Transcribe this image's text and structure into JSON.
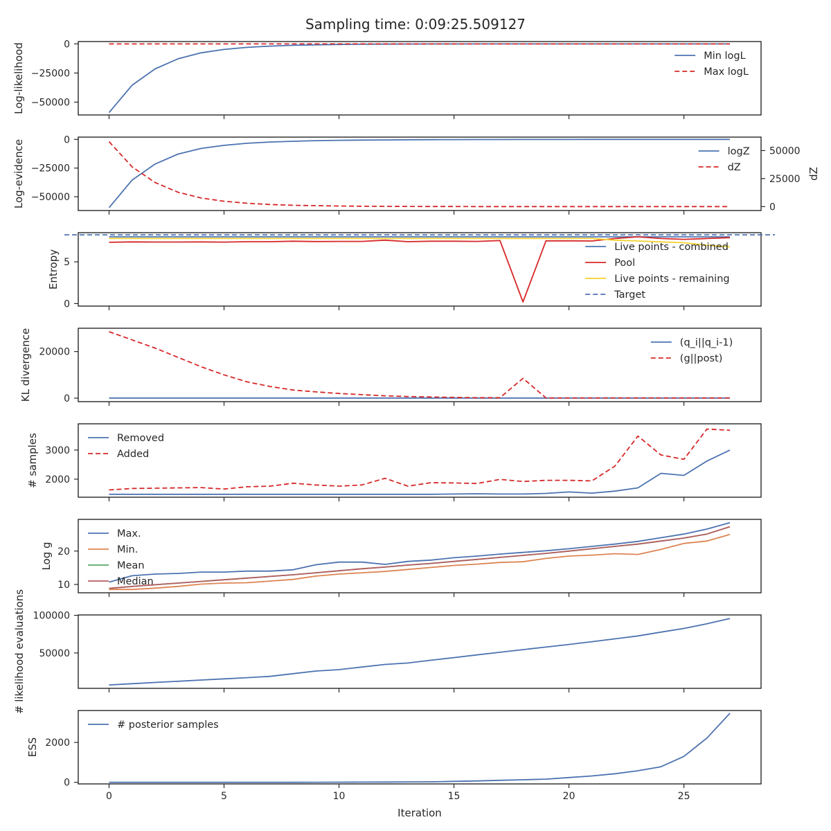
{
  "title": "Sampling time: 0:09:25.509127",
  "xlabel": "Iteration",
  "colors": {
    "blue": "#4c72b0",
    "red": "#d62728",
    "yellow": "#f2d12e",
    "orange": "#dd8452",
    "green": "#55a868",
    "median": "#b55d60",
    "axis": "#262626"
  },
  "chart_data": [
    {
      "type": "line",
      "ylabel": "Log-likelihood",
      "ylim": [
        -61000,
        2000
      ],
      "yticks": [
        0,
        -25000,
        -50000
      ],
      "ytick_labels": [
        "0",
        "−25000",
        "−50000"
      ],
      "legend_position": "right",
      "series": [
        {
          "name": "Min logL",
          "color": "blue",
          "style": "solid",
          "values": [
            -59000,
            -35500,
            -21500,
            -12800,
            -7700,
            -4800,
            -3000,
            -1900,
            -1200,
            -800,
            -500,
            -320,
            -200,
            -130,
            -85,
            -55,
            -35,
            -22,
            -14,
            -9,
            -6,
            -4,
            -2,
            -1,
            -1,
            0,
            0,
            0
          ]
        },
        {
          "name": "Max logL",
          "color": "red",
          "style": "dashed",
          "values": [
            0,
            0,
            0,
            0,
            0,
            0,
            0,
            0,
            0,
            0,
            0,
            0,
            0,
            0,
            0,
            0,
            0,
            0,
            0,
            0,
            0,
            0,
            0,
            0,
            0,
            0,
            0,
            0
          ]
        }
      ]
    },
    {
      "type": "line",
      "ylabel": "Log-evidence",
      "ylabel_right": "dZ",
      "ylim": [
        -62000,
        2000
      ],
      "yticks": [
        0,
        -25000,
        -50000
      ],
      "ytick_labels": [
        "0",
        "−25000",
        "−50000"
      ],
      "ylim_right": [
        -3500,
        62000
      ],
      "yticks_right": [
        0,
        25000,
        50000
      ],
      "ytick_labels_right": [
        "0",
        "25000",
        "50000"
      ],
      "legend_position": "right",
      "series": [
        {
          "name": "logZ",
          "color": "blue",
          "style": "solid",
          "axis": "left",
          "values": [
            -59500,
            -35500,
            -21500,
            -12800,
            -7900,
            -5200,
            -3400,
            -2300,
            -1600,
            -1100,
            -800,
            -600,
            -450,
            -320,
            -230,
            -170,
            -120,
            -90,
            -65,
            -45,
            -30,
            -20,
            -14,
            -9,
            -6,
            -4,
            -2,
            -1
          ]
        },
        {
          "name": "dZ",
          "color": "red",
          "style": "dashed",
          "axis": "right",
          "values": [
            58000,
            35500,
            21500,
            12800,
            7700,
            4800,
            3000,
            1900,
            1200,
            800,
            500,
            320,
            200,
            130,
            85,
            55,
            35,
            22,
            14,
            9,
            6,
            4,
            2,
            1,
            1,
            0,
            0,
            0
          ]
        }
      ]
    },
    {
      "type": "line",
      "ylabel": "Entropy",
      "ylim": [
        -0.3,
        8.5
      ],
      "yticks": [
        0,
        5
      ],
      "ytick_labels": [
        "0",
        "5"
      ],
      "legend_position": "right",
      "series": [
        {
          "name": "Live points - combined",
          "color": "blue",
          "style": "solid",
          "values": [
            8.0,
            8.0,
            8.0,
            8.0,
            8.0,
            8.0,
            8.0,
            8.0,
            8.0,
            8.0,
            8.0,
            8.0,
            8.0,
            8.0,
            8.0,
            8.0,
            8.0,
            8.0,
            8.0,
            8.0,
            8.0,
            8.0,
            8.0,
            8.0,
            8.0,
            8.0,
            8.0,
            8.0
          ]
        },
        {
          "name": "Pool",
          "color": "red",
          "style": "solid",
          "values": [
            7.35,
            7.4,
            7.38,
            7.38,
            7.4,
            7.37,
            7.42,
            7.42,
            7.48,
            7.44,
            7.45,
            7.45,
            7.6,
            7.42,
            7.48,
            7.48,
            7.45,
            7.55,
            0.2,
            7.52,
            7.52,
            7.5,
            7.8,
            8.0,
            7.8,
            7.7,
            7.8,
            7.9
          ]
        },
        {
          "name": "Live points - remaining",
          "color": "yellow",
          "style": "solid",
          "values": [
            7.8,
            7.8,
            7.8,
            7.8,
            7.8,
            7.8,
            7.8,
            7.8,
            7.8,
            7.8,
            7.8,
            7.8,
            7.8,
            7.8,
            7.8,
            7.8,
            7.8,
            7.8,
            7.8,
            7.8,
            7.8,
            7.8,
            7.6,
            7.5,
            7.4,
            7.3,
            7.0,
            6.8
          ]
        },
        {
          "name": "Target",
          "color": "blue",
          "style": "dashed",
          "hline": 8.24
        }
      ]
    },
    {
      "type": "line",
      "ylabel": "KL divergence",
      "ylim": [
        -1500,
        30000
      ],
      "yticks": [
        0,
        20000
      ],
      "ytick_labels": [
        "0",
        "20000"
      ],
      "legend_position": "right",
      "series": [
        {
          "name": "(q_i||q_i-1)",
          "color": "blue",
          "style": "solid",
          "values": [
            60,
            60,
            60,
            60,
            60,
            60,
            60,
            60,
            60,
            60,
            60,
            60,
            60,
            60,
            60,
            60,
            60,
            60,
            60,
            60,
            60,
            60,
            60,
            60,
            60,
            60,
            60,
            60
          ]
        },
        {
          "name": "(g||post)",
          "color": "red",
          "style": "dashed",
          "values": [
            28500,
            25000,
            21500,
            17500,
            13500,
            10000,
            7000,
            5000,
            3500,
            2700,
            2000,
            1500,
            1000,
            700,
            500,
            300,
            200,
            200,
            8500,
            100,
            100,
            100,
            100,
            100,
            100,
            100,
            100,
            100
          ]
        }
      ]
    },
    {
      "type": "line",
      "ylabel": "# samples",
      "ylim": [
        1380,
        3900
      ],
      "yticks": [
        2000,
        3000
      ],
      "ytick_labels": [
        "2000",
        "3000"
      ],
      "legend_position": "left",
      "series": [
        {
          "name": "Removed",
          "color": "blue",
          "style": "solid",
          "values": [
            1480,
            1480,
            1480,
            1480,
            1480,
            1480,
            1480,
            1480,
            1480,
            1480,
            1480,
            1480,
            1480,
            1480,
            1480,
            1490,
            1500,
            1490,
            1490,
            1510,
            1560,
            1520,
            1590,
            1700,
            2200,
            2130,
            2620,
            3000
          ]
        },
        {
          "name": "Added",
          "color": "red",
          "style": "dashed",
          "values": [
            1630,
            1680,
            1690,
            1700,
            1710,
            1660,
            1740,
            1760,
            1860,
            1800,
            1760,
            1800,
            2030,
            1760,
            1880,
            1870,
            1850,
            1990,
            1920,
            1960,
            1960,
            1940,
            2450,
            3480,
            2830,
            2680,
            3720,
            3680
          ]
        }
      ]
    },
    {
      "type": "line",
      "ylabel": "Log g",
      "ylim": [
        7.5,
        29.5
      ],
      "yticks": [
        10,
        20
      ],
      "ytick_labels": [
        "10",
        "20"
      ],
      "legend_position": "left",
      "series": [
        {
          "name": "Max.",
          "color": "blue",
          "style": "solid",
          "values": [
            10.7,
            12.6,
            13.1,
            13.3,
            13.7,
            13.7,
            14.0,
            14.0,
            14.4,
            15.9,
            16.7,
            16.7,
            16.0,
            16.9,
            17.3,
            18.0,
            18.5,
            19.1,
            19.6,
            20.1,
            20.7,
            21.4,
            22.1,
            22.9,
            24.0,
            25.1,
            26.6,
            28.5
          ]
        },
        {
          "name": "Min.",
          "color": "orange",
          "style": "solid",
          "values": [
            8.5,
            8.5,
            8.9,
            9.4,
            10.1,
            10.4,
            10.5,
            11.0,
            11.5,
            12.5,
            13.1,
            13.5,
            13.9,
            14.5,
            15.1,
            15.7,
            16.1,
            16.6,
            16.8,
            17.8,
            18.5,
            18.8,
            19.2,
            19.0,
            20.5,
            22.3,
            23.0,
            25.0
          ]
        },
        {
          "name": "Mean",
          "color": "green",
          "style": "solid",
          "values": [
            8.8,
            9.4,
            9.9,
            10.4,
            10.9,
            11.4,
            11.9,
            12.4,
            12.9,
            13.5,
            14.1,
            14.7,
            15.2,
            15.8,
            16.3,
            16.9,
            17.5,
            18.1,
            18.7,
            19.3,
            20.0,
            20.7,
            21.4,
            22.1,
            23.0,
            23.9,
            25.1,
            27.3
          ]
        },
        {
          "name": "Median",
          "color": "median",
          "style": "solid",
          "values": [
            8.8,
            9.4,
            9.9,
            10.4,
            10.9,
            11.4,
            11.9,
            12.4,
            12.9,
            13.5,
            14.1,
            14.7,
            15.2,
            15.8,
            16.3,
            16.9,
            17.5,
            18.1,
            18.7,
            19.3,
            20.0,
            20.7,
            21.4,
            22.1,
            23.0,
            23.9,
            25.1,
            27.3
          ]
        }
      ]
    },
    {
      "type": "line",
      "ylabel": "# likelihood evaluations",
      "ylim": [
        3000,
        100500
      ],
      "yticks": [
        50000,
        100000
      ],
      "ytick_labels": [
        "50000",
        "100000"
      ],
      "legend_position": "none",
      "series": [
        {
          "name": "",
          "color": "blue",
          "style": "solid",
          "values": [
            7500,
            9200,
            10800,
            12400,
            14000,
            15600,
            17200,
            18900,
            22500,
            26000,
            27800,
            31300,
            34700,
            36700,
            40300,
            43800,
            47400,
            50900,
            54400,
            57800,
            61300,
            65000,
            68800,
            72600,
            77700,
            82600,
            88700,
            95800
          ]
        }
      ]
    },
    {
      "type": "line",
      "ylabel": "ESS",
      "ylim": [
        -80,
        3600
      ],
      "yticks": [
        0,
        2000
      ],
      "ytick_labels": [
        "0",
        "2000"
      ],
      "legend_position": "left",
      "xticks": [
        0,
        5,
        10,
        15,
        20,
        25
      ],
      "series": [
        {
          "name": "# posterior samples",
          "color": "blue",
          "style": "solid",
          "values": [
            0,
            0,
            0,
            0,
            0,
            0,
            0,
            0,
            0,
            5,
            8,
            10,
            12,
            20,
            25,
            50,
            70,
            100,
            130,
            160,
            240,
            320,
            430,
            580,
            780,
            1300,
            2220,
            3460
          ]
        }
      ]
    }
  ]
}
